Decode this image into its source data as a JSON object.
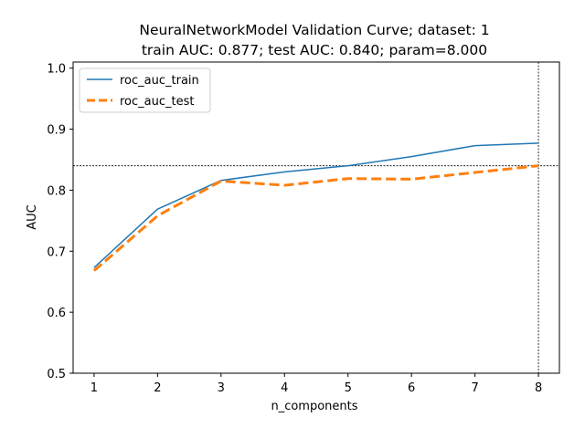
{
  "chart_data": {
    "type": "line",
    "title": "NeuralNetworkModel Validation Curve; dataset: 1",
    "subtitle": "train AUC: 0.877; test AUC: 0.840; param=8.000",
    "xlabel": "n_components",
    "ylabel": "AUC",
    "x": [
      1,
      2,
      3,
      4,
      5,
      6,
      7,
      8
    ],
    "xlim": [
      0.67,
      8.33
    ],
    "ylim": [
      0.5,
      1.01
    ],
    "x_ticks": [
      "1",
      "2",
      "3",
      "4",
      "5",
      "6",
      "7",
      "8"
    ],
    "y_ticks": [
      "0.5",
      "0.6",
      "0.7",
      "0.8",
      "0.9",
      "1.0"
    ],
    "grid": false,
    "legend_position": "upper-left",
    "series": [
      {
        "name": "roc_auc_train",
        "values": [
          0.673,
          0.769,
          0.816,
          0.83,
          0.84,
          0.855,
          0.873,
          0.877
        ],
        "color": "#1f77b4",
        "style": "solid"
      },
      {
        "name": "roc_auc_test",
        "values": [
          0.668,
          0.758,
          0.815,
          0.808,
          0.819,
          0.818,
          0.829,
          0.84
        ],
        "color": "#ff7f0e",
        "style": "dashed"
      }
    ],
    "reference_lines": {
      "horizontal_y": 0.84,
      "vertical_x": 8,
      "color": "#000000",
      "style": "dotted"
    }
  }
}
